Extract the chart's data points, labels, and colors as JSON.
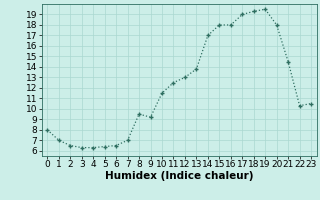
{
  "x": [
    0,
    1,
    2,
    3,
    4,
    5,
    6,
    7,
    8,
    9,
    10,
    11,
    12,
    13,
    14,
    15,
    16,
    17,
    18,
    19,
    20,
    21,
    22,
    23
  ],
  "y": [
    8.0,
    7.0,
    6.5,
    6.3,
    6.3,
    6.4,
    6.5,
    7.0,
    9.5,
    9.2,
    11.5,
    12.5,
    13.0,
    13.8,
    17.0,
    18.0,
    18.0,
    19.0,
    19.3,
    19.5,
    18.0,
    14.5,
    10.3,
    10.5
  ],
  "xlabel": "Humidex (Indice chaleur)",
  "xlim": [
    -0.5,
    23.5
  ],
  "ylim": [
    5.5,
    20.0
  ],
  "xticks": [
    0,
    1,
    2,
    3,
    4,
    5,
    6,
    7,
    8,
    9,
    10,
    11,
    12,
    13,
    14,
    15,
    16,
    17,
    18,
    19,
    20,
    21,
    22,
    23
  ],
  "yticks": [
    6,
    7,
    8,
    9,
    10,
    11,
    12,
    13,
    14,
    15,
    16,
    17,
    18,
    19
  ],
  "line_color": "#2e6e60",
  "bg_color": "#cceee8",
  "grid_color": "#aad8d0",
  "tick_label_fontsize": 6.5,
  "xlabel_fontsize": 7.5
}
